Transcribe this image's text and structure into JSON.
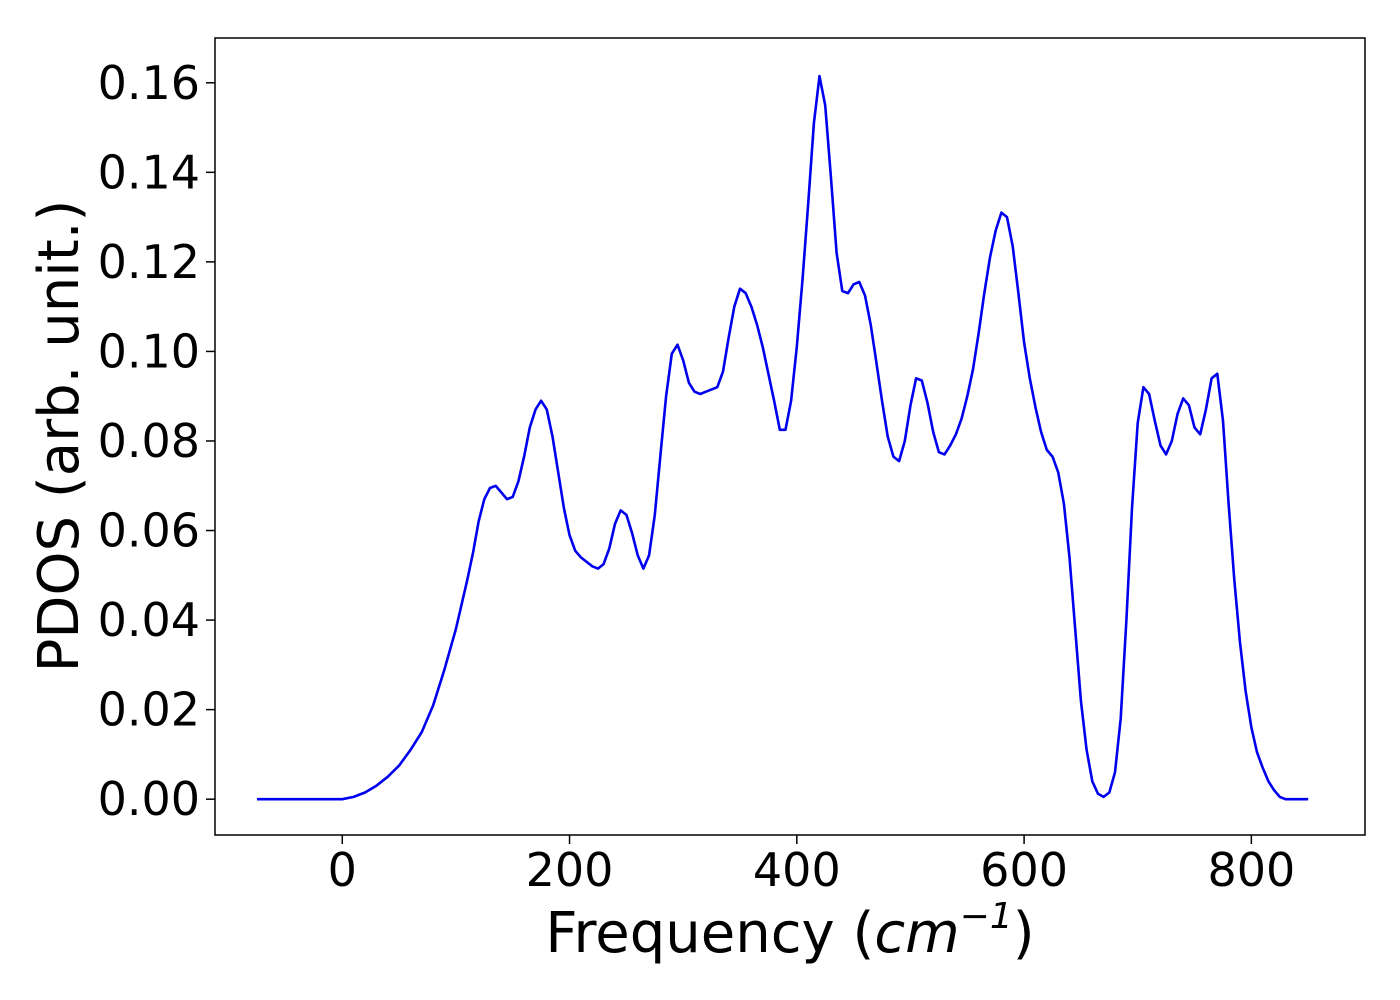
{
  "chart_data": {
    "type": "line",
    "title": "",
    "xlabel": "Frequency (",
    "xlabel_unit_base": "cm",
    "xlabel_unit_exp": "−1",
    "xlabel_close": ")",
    "ylabel": "PDOS (arb. unit.)",
    "xlim": [
      -112,
      900
    ],
    "ylim": [
      -0.008,
      0.17
    ],
    "xticks": [
      0,
      200,
      400,
      600,
      800
    ],
    "xtick_labels": [
      "0",
      "200",
      "400",
      "600",
      "800"
    ],
    "yticks": [
      0,
      0.02,
      0.04,
      0.06,
      0.08,
      0.1,
      0.12,
      0.14,
      0.16
    ],
    "ytick_labels": [
      "0.00",
      "0.02",
      "0.04",
      "0.06",
      "0.08",
      "0.10",
      "0.12",
      "0.14",
      "0.16"
    ],
    "grid": false,
    "line_color": "#0000ee",
    "series": [
      {
        "points": [
          [
            -75,
            0.0
          ],
          [
            0,
            0.0
          ],
          [
            10,
            0.0005
          ],
          [
            20,
            0.0015
          ],
          [
            30,
            0.003
          ],
          [
            40,
            0.005
          ],
          [
            50,
            0.0075
          ],
          [
            60,
            0.011
          ],
          [
            70,
            0.015
          ],
          [
            80,
            0.021
          ],
          [
            90,
            0.029
          ],
          [
            100,
            0.038
          ],
          [
            110,
            0.049
          ],
          [
            115,
            0.055
          ],
          [
            120,
            0.062
          ],
          [
            125,
            0.067
          ],
          [
            130,
            0.0695
          ],
          [
            135,
            0.07
          ],
          [
            140,
            0.0685
          ],
          [
            145,
            0.067
          ],
          [
            150,
            0.0675
          ],
          [
            155,
            0.071
          ],
          [
            160,
            0.0765
          ],
          [
            165,
            0.083
          ],
          [
            170,
            0.087
          ],
          [
            175,
            0.089
          ],
          [
            180,
            0.087
          ],
          [
            185,
            0.081
          ],
          [
            190,
            0.073
          ],
          [
            195,
            0.065
          ],
          [
            200,
            0.059
          ],
          [
            205,
            0.0555
          ],
          [
            210,
            0.054
          ],
          [
            220,
            0.052
          ],
          [
            225,
            0.0515
          ],
          [
            230,
            0.0525
          ],
          [
            235,
            0.056
          ],
          [
            240,
            0.0615
          ],
          [
            245,
            0.0645
          ],
          [
            250,
            0.0635
          ],
          [
            255,
            0.0595
          ],
          [
            260,
            0.0545
          ],
          [
            265,
            0.0515
          ],
          [
            270,
            0.0545
          ],
          [
            275,
            0.0635
          ],
          [
            280,
            0.077
          ],
          [
            285,
            0.09
          ],
          [
            290,
            0.0995
          ],
          [
            295,
            0.1015
          ],
          [
            300,
            0.098
          ],
          [
            305,
            0.093
          ],
          [
            310,
            0.091
          ],
          [
            315,
            0.0905
          ],
          [
            320,
            0.091
          ],
          [
            330,
            0.092
          ],
          [
            335,
            0.0955
          ],
          [
            340,
            0.103
          ],
          [
            345,
            0.11
          ],
          [
            350,
            0.114
          ],
          [
            355,
            0.113
          ],
          [
            360,
            0.11
          ],
          [
            365,
            0.106
          ],
          [
            370,
            0.101
          ],
          [
            375,
            0.095
          ],
          [
            380,
            0.089
          ],
          [
            385,
            0.0825
          ],
          [
            390,
            0.0825
          ],
          [
            395,
            0.089
          ],
          [
            400,
            0.101
          ],
          [
            405,
            0.116
          ],
          [
            410,
            0.133
          ],
          [
            415,
            0.151
          ],
          [
            420,
            0.1615
          ],
          [
            425,
            0.155
          ],
          [
            430,
            0.139
          ],
          [
            435,
            0.122
          ],
          [
            440,
            0.1135
          ],
          [
            445,
            0.113
          ],
          [
            450,
            0.115
          ],
          [
            455,
            0.1155
          ],
          [
            460,
            0.1125
          ],
          [
            465,
            0.106
          ],
          [
            470,
            0.0975
          ],
          [
            475,
            0.089
          ],
          [
            480,
            0.081
          ],
          [
            485,
            0.0765
          ],
          [
            490,
            0.0755
          ],
          [
            495,
            0.08
          ],
          [
            500,
            0.088
          ],
          [
            505,
            0.094
          ],
          [
            510,
            0.0935
          ],
          [
            515,
            0.0885
          ],
          [
            520,
            0.082
          ],
          [
            525,
            0.0775
          ],
          [
            530,
            0.077
          ],
          [
            535,
            0.079
          ],
          [
            540,
            0.0815
          ],
          [
            545,
            0.085
          ],
          [
            550,
            0.09
          ],
          [
            555,
            0.096
          ],
          [
            560,
            0.104
          ],
          [
            565,
            0.113
          ],
          [
            570,
            0.121
          ],
          [
            575,
            0.127
          ],
          [
            580,
            0.131
          ],
          [
            585,
            0.13
          ],
          [
            590,
            0.1235
          ],
          [
            595,
            0.113
          ],
          [
            600,
            0.102
          ],
          [
            605,
            0.094
          ],
          [
            610,
            0.0875
          ],
          [
            615,
            0.082
          ],
          [
            620,
            0.078
          ],
          [
            625,
            0.0765
          ],
          [
            630,
            0.073
          ],
          [
            635,
            0.066
          ],
          [
            640,
            0.054
          ],
          [
            645,
            0.038
          ],
          [
            650,
            0.022
          ],
          [
            655,
            0.011
          ],
          [
            660,
            0.004
          ],
          [
            665,
            0.0012
          ],
          [
            670,
            0.0005
          ],
          [
            675,
            0.0015
          ],
          [
            680,
            0.006
          ],
          [
            685,
            0.018
          ],
          [
            690,
            0.04
          ],
          [
            695,
            0.065
          ],
          [
            700,
            0.084
          ],
          [
            705,
            0.092
          ],
          [
            710,
            0.0905
          ],
          [
            715,
            0.0845
          ],
          [
            720,
            0.079
          ],
          [
            725,
            0.077
          ],
          [
            730,
            0.08
          ],
          [
            735,
            0.086
          ],
          [
            740,
            0.0895
          ],
          [
            745,
            0.088
          ],
          [
            750,
            0.083
          ],
          [
            755,
            0.0815
          ],
          [
            760,
            0.087
          ],
          [
            765,
            0.094
          ],
          [
            770,
            0.095
          ],
          [
            775,
            0.0845
          ],
          [
            780,
            0.066
          ],
          [
            785,
            0.049
          ],
          [
            790,
            0.035
          ],
          [
            795,
            0.024
          ],
          [
            800,
            0.016
          ],
          [
            805,
            0.0105
          ],
          [
            810,
            0.007
          ],
          [
            815,
            0.004
          ],
          [
            820,
            0.002
          ],
          [
            825,
            0.0005
          ],
          [
            830,
            0.0
          ],
          [
            850,
            0.0
          ]
        ]
      }
    ]
  }
}
